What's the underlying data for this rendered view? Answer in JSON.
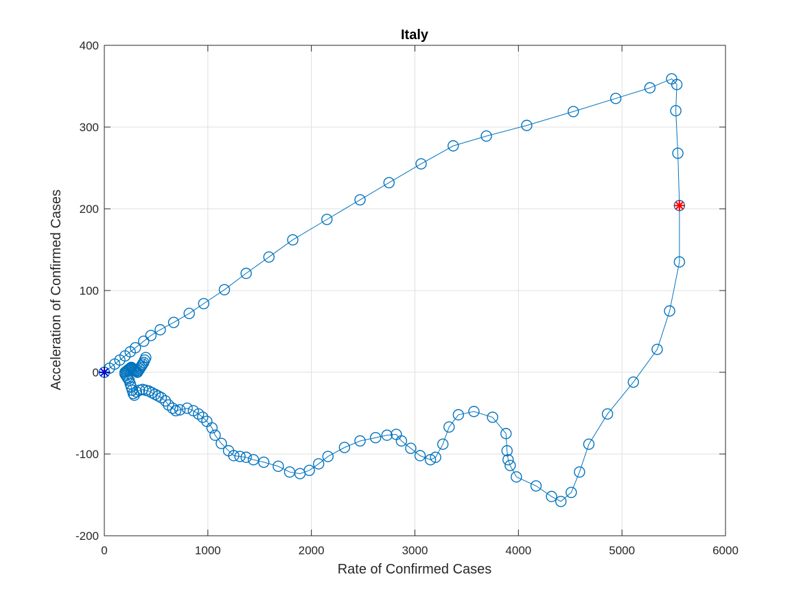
{
  "chart_data": {
    "type": "line",
    "title": "Italy",
    "xlabel": "Rate of Confirmed Cases",
    "ylabel": "Acceleration of Confirmed Cases",
    "xlim": [
      0,
      6000
    ],
    "ylim": [
      -200,
      400
    ],
    "xticks": [
      0,
      1000,
      2000,
      3000,
      4000,
      5000,
      6000
    ],
    "yticks": [
      -200,
      -100,
      0,
      100,
      200,
      300,
      400
    ],
    "xtick_labels": [
      "0",
      "1000",
      "2000",
      "3000",
      "4000",
      "5000",
      "6000"
    ],
    "ytick_labels": [
      "-200",
      "-100",
      "0",
      "100",
      "200",
      "300",
      "400"
    ],
    "grid": true,
    "series": [
      {
        "marker": "circle",
        "color": "#0072BD",
        "x": [
          0,
          50,
          100,
          150,
          200,
          250,
          300,
          380,
          450,
          540,
          670,
          820,
          960,
          1160,
          1370,
          1590,
          1820,
          2150,
          2470,
          2750,
          3060,
          3370,
          3690,
          4080,
          4530,
          4940,
          5270,
          5480,
          5530,
          5520,
          5540,
          5555,
          5555,
          5460,
          5340,
          5110,
          4860,
          4680,
          4590,
          4510,
          4410,
          4320,
          4170,
          3980,
          3920,
          3900,
          3890,
          3880,
          3750,
          3570,
          3420,
          3330,
          3270,
          3200,
          3150,
          3050,
          2960,
          2870,
          2820,
          2730,
          2620,
          2470,
          2320,
          2160,
          2070,
          1980,
          1890,
          1790,
          1680,
          1540,
          1440,
          1370,
          1310,
          1250,
          1200,
          1130,
          1070,
          1040,
          990,
          950,
          910,
          860,
          800,
          730,
          690,
          660,
          620,
          590,
          550,
          520,
          490,
          460,
          430,
          400,
          370,
          340,
          310,
          290,
          280,
          270,
          260,
          250,
          240,
          230,
          220,
          210,
          200,
          200,
          210,
          220,
          230,
          240,
          250,
          260,
          270,
          280,
          290,
          300,
          310,
          320,
          330,
          340,
          350,
          360,
          370,
          380,
          390,
          400
        ],
        "y": [
          0,
          5,
          10,
          15,
          20,
          25,
          30,
          38,
          45,
          52,
          61,
          72,
          84,
          101,
          121,
          141,
          162,
          187,
          211,
          232,
          255,
          277,
          289,
          302,
          319,
          335,
          348,
          359,
          352,
          320,
          268,
          204,
          135,
          75,
          28,
          -12,
          -51,
          -88,
          -122,
          -147,
          -158,
          -152,
          -139,
          -128,
          -114,
          -107,
          -96,
          -75,
          -55,
          -48,
          -52,
          -67,
          -88,
          -104,
          -107,
          -102,
          -93,
          -84,
          -76,
          -77,
          -80,
          -84,
          -92,
          -103,
          -112,
          -120,
          -124,
          -122,
          -115,
          -110,
          -107,
          -104,
          -103,
          -102,
          -96,
          -87,
          -77,
          -68,
          -60,
          -55,
          -51,
          -47,
          -44,
          -46,
          -47,
          -44,
          -40,
          -35,
          -31,
          -29,
          -27,
          -25,
          -23,
          -22,
          -21,
          -22,
          -24,
          -28,
          -26,
          -22,
          -18,
          -14,
          -10,
          -8,
          -6,
          -4,
          -2,
          0,
          1,
          2,
          3,
          4,
          5,
          6,
          5,
          4,
          3,
          2,
          1,
          0,
          2,
          4,
          6,
          8,
          10,
          12,
          15,
          18
        ]
      }
    ],
    "markers": [
      {
        "name": "start",
        "x": 0,
        "y": 0,
        "symbol": "asterisk",
        "color": "#0000FF"
      },
      {
        "name": "current",
        "x": 5555,
        "y": 204,
        "symbol": "asterisk",
        "color": "#FF0000"
      }
    ]
  }
}
